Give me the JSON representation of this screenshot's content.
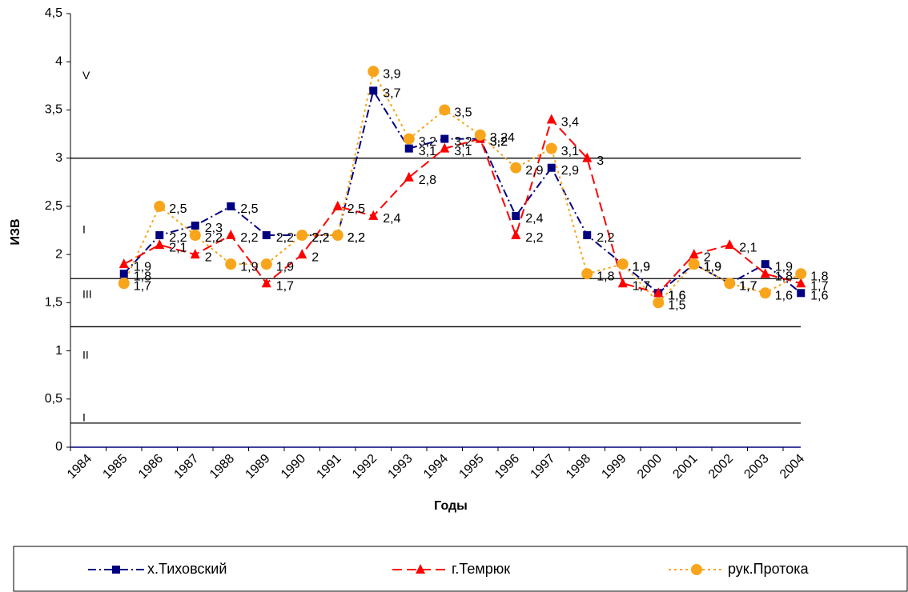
{
  "chart_data": {
    "type": "line",
    "x_label": "Годы",
    "y_label": "ИЗВ",
    "categories": [
      "1984",
      "1985",
      "1986",
      "1987",
      "1988",
      "1989",
      "1990",
      "1991",
      "1992",
      "1993",
      "1994",
      "1995",
      "1996",
      "1997",
      "1998",
      "1999",
      "2000",
      "2001",
      "2002",
      "2003",
      "2004"
    ],
    "ylim": [
      0,
      4.5
    ],
    "yticks": [
      0,
      {
        "value": 0.5,
        "label": "0,5"
      },
      1,
      {
        "value": 1.5,
        "label": "1,5"
      },
      2,
      {
        "value": 2.5,
        "label": "2,5"
      },
      3,
      {
        "value": 3.5,
        "label": "3,5"
      },
      4,
      {
        "value": 4.5,
        "label": "4,5"
      }
    ],
    "reference_lines": [
      3,
      1.75,
      1.25,
      0.25
    ],
    "annotations": [
      {
        "text": "V",
        "y": 3.85
      },
      {
        "text": "I",
        "y": 2.25
      },
      {
        "text": "III",
        "y": 1.58
      },
      {
        "text": "II",
        "y": 0.95
      },
      {
        "text": "I",
        "y": 0.3
      }
    ],
    "series": [
      {
        "name": "х.Тиховский",
        "color": "#000080",
        "marker": "square",
        "dash": "10 4 2 4",
        "values": [
          null,
          1.8,
          2.2,
          2.3,
          2.5,
          2.2,
          2.2,
          2.2,
          3.7,
          3.1,
          3.2,
          3.2,
          2.4,
          2.9,
          2.2,
          1.9,
          1.6,
          1.9,
          1.7,
          1.9,
          1.6
        ],
        "value_labels": [
          null,
          "1,8",
          "2,2",
          "2,3",
          "2,5",
          "2,2",
          "2,2",
          "2,2",
          "3,7",
          "3,1",
          "3,2",
          "3,2",
          "2,4",
          "2,9",
          "2,2",
          "1,9",
          "1,6",
          "1,9",
          "1,7",
          "1,9",
          "1,6"
        ]
      },
      {
        "name": "г.Темрюк",
        "color": "#ff0000",
        "marker": "triangle",
        "dash": "12 6",
        "values": [
          null,
          1.9,
          2.1,
          2.0,
          2.2,
          1.7,
          2.0,
          2.5,
          2.4,
          2.8,
          3.1,
          3.2,
          2.2,
          3.4,
          3.0,
          1.7,
          1.6,
          2.0,
          2.1,
          1.8,
          1.7
        ],
        "value_labels": [
          null,
          "1,9",
          "2,1",
          "2",
          "2,2",
          "1,7",
          "2",
          "2,5",
          "2,4",
          "2,8",
          "3,1",
          "3,2",
          "2,2",
          "3,4",
          "3",
          "1,7",
          "1,6",
          "2",
          "2,1",
          "1,8",
          "1,7"
        ]
      },
      {
        "name": "рук.Протока",
        "color": "#f8a51b",
        "marker": "circle",
        "dash": "3 4",
        "values": [
          null,
          1.7,
          2.5,
          2.2,
          1.9,
          1.9,
          2.2,
          2.2,
          3.9,
          3.2,
          3.5,
          3.24,
          2.9,
          3.1,
          1.8,
          1.9,
          1.5,
          1.9,
          1.7,
          1.6,
          1.8
        ],
        "value_labels": [
          null,
          "1,7",
          "2,5",
          "2,2",
          "1,9",
          "1,9",
          "2,2",
          "2,2",
          "3,9",
          "3,2",
          "3,5",
          "3,24",
          "2,9",
          "3,1",
          "1,8",
          "1,9",
          "1,5",
          "1,9",
          "1,7",
          "1,6",
          "1,8"
        ]
      }
    ]
  }
}
